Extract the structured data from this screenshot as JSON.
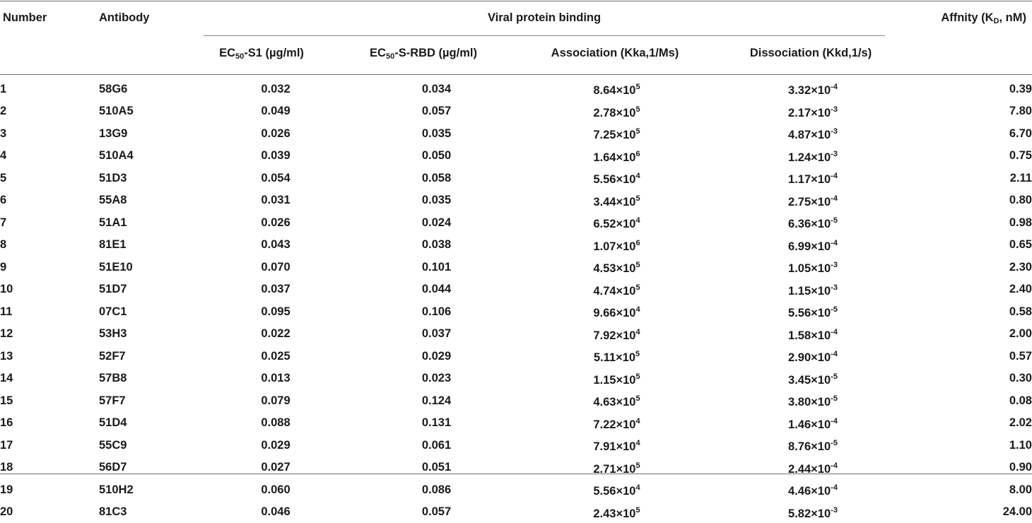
{
  "table": {
    "headers": {
      "number": "Number",
      "antibody": "Antibody",
      "group": "Viral protein binding",
      "affinity_prefix": "Affnity (K",
      "affinity_sub": "D",
      "affinity_suffix": ", nM)",
      "ec50_s1_prefix": "EC",
      "ec50_s1_sub": "50",
      "ec50_s1_suffix": "-S1 (µg/ml)",
      "ec50_rbd_prefix": "EC",
      "ec50_rbd_sub": "50",
      "ec50_rbd_suffix": "-S-RBD (µg/ml)",
      "association": "Association (Kka,1/Ms)",
      "dissociation": "Dissociation (Kkd,1/s)"
    },
    "rows": [
      {
        "number": "1",
        "antibody": "58G6",
        "ec50_s1": "0.032",
        "ec50_rbd": "0.034",
        "assoc_mant": "8.64×10",
        "assoc_exp": "5",
        "dissoc_mant": "3.32×10",
        "dissoc_exp": "-4",
        "kd": "0.39"
      },
      {
        "number": "2",
        "antibody": "510A5",
        "ec50_s1": "0.049",
        "ec50_rbd": "0.057",
        "assoc_mant": "2.78×10",
        "assoc_exp": "5",
        "dissoc_mant": "2.17×10",
        "dissoc_exp": "-3",
        "kd": "7.80"
      },
      {
        "number": "3",
        "antibody": "13G9",
        "ec50_s1": "0.026",
        "ec50_rbd": "0.035",
        "assoc_mant": "7.25×10",
        "assoc_exp": "5",
        "dissoc_mant": "4.87×10",
        "dissoc_exp": "-3",
        "kd": "6.70"
      },
      {
        "number": "4",
        "antibody": "510A4",
        "ec50_s1": "0.039",
        "ec50_rbd": "0.050",
        "assoc_mant": "1.64×10",
        "assoc_exp": "6",
        "dissoc_mant": "1.24×10",
        "dissoc_exp": "-3",
        "kd": "0.75"
      },
      {
        "number": "5",
        "antibody": "51D3",
        "ec50_s1": "0.054",
        "ec50_rbd": "0.058",
        "assoc_mant": "5.56×10",
        "assoc_exp": "4",
        "dissoc_mant": "1.17×10",
        "dissoc_exp": "-4",
        "kd": "2.11"
      },
      {
        "number": "6",
        "antibody": "55A8",
        "ec50_s1": "0.031",
        "ec50_rbd": "0.035",
        "assoc_mant": "3.44×10",
        "assoc_exp": "5",
        "dissoc_mant": "2.75×10",
        "dissoc_exp": "-4",
        "kd": "0.80"
      },
      {
        "number": "7",
        "antibody": "51A1",
        "ec50_s1": "0.026",
        "ec50_rbd": "0.024",
        "assoc_mant": "6.52×10",
        "assoc_exp": "4",
        "dissoc_mant": "6.36×10",
        "dissoc_exp": "-5",
        "kd": "0.98"
      },
      {
        "number": "8",
        "antibody": "81E1",
        "ec50_s1": "0.043",
        "ec50_rbd": "0.038",
        "assoc_mant": "1.07×10",
        "assoc_exp": "6",
        "dissoc_mant": "6.99×10",
        "dissoc_exp": "-4",
        "kd": "0.65"
      },
      {
        "number": "9",
        "antibody": "51E10",
        "ec50_s1": "0.070",
        "ec50_rbd": "0.101",
        "assoc_mant": "4.53×10",
        "assoc_exp": "5",
        "dissoc_mant": "1.05×10",
        "dissoc_exp": "-3",
        "kd": "2.30"
      },
      {
        "number": "10",
        "antibody": "51D7",
        "ec50_s1": "0.037",
        "ec50_rbd": "0.044",
        "assoc_mant": "4.74×10",
        "assoc_exp": "5",
        "dissoc_mant": "1.15×10",
        "dissoc_exp": "-3",
        "kd": "2.40"
      },
      {
        "number": "11",
        "antibody": "07C1",
        "ec50_s1": "0.095",
        "ec50_rbd": "0.106",
        "assoc_mant": "9.66×10",
        "assoc_exp": "4",
        "dissoc_mant": "5.56×10",
        "dissoc_exp": "-5",
        "kd": "0.58"
      },
      {
        "number": "12",
        "antibody": "53H3",
        "ec50_s1": "0.022",
        "ec50_rbd": "0.037",
        "assoc_mant": "7.92×10",
        "assoc_exp": "4",
        "dissoc_mant": "1.58×10",
        "dissoc_exp": "-4",
        "kd": "2.00"
      },
      {
        "number": "13",
        "antibody": "52F7",
        "ec50_s1": "0.025",
        "ec50_rbd": "0.029",
        "assoc_mant": "5.11×10",
        "assoc_exp": "5",
        "dissoc_mant": "2.90×10",
        "dissoc_exp": "-4",
        "kd": "0.57"
      },
      {
        "number": "14",
        "antibody": "57B8",
        "ec50_s1": "0.013",
        "ec50_rbd": "0.023",
        "assoc_mant": "1.15×10",
        "assoc_exp": "5",
        "dissoc_mant": "3.45×10",
        "dissoc_exp": "-5",
        "kd": "0.30"
      },
      {
        "number": "15",
        "antibody": "57F7",
        "ec50_s1": "0.079",
        "ec50_rbd": "0.124",
        "assoc_mant": "4.63×10",
        "assoc_exp": "5",
        "dissoc_mant": "3.80×10",
        "dissoc_exp": "-5",
        "kd": "0.08"
      },
      {
        "number": "16",
        "antibody": "51D4",
        "ec50_s1": "0.088",
        "ec50_rbd": "0.131",
        "assoc_mant": "7.22×10",
        "assoc_exp": "4",
        "dissoc_mant": "1.46×10",
        "dissoc_exp": "-4",
        "kd": "2.02"
      },
      {
        "number": "17",
        "antibody": "55C9",
        "ec50_s1": "0.029",
        "ec50_rbd": "0.061",
        "assoc_mant": "7.91×10",
        "assoc_exp": "4",
        "dissoc_mant": "8.76×10",
        "dissoc_exp": "-5",
        "kd": "1.10"
      },
      {
        "number": "18",
        "antibody": "56D7",
        "ec50_s1": "0.027",
        "ec50_rbd": "0.051",
        "assoc_mant": "2.71×10",
        "assoc_exp": "5",
        "dissoc_mant": "2.44×10",
        "dissoc_exp": "-4",
        "kd": "0.90"
      },
      {
        "number": "19",
        "antibody": "510H2",
        "ec50_s1": "0.060",
        "ec50_rbd": "0.086",
        "assoc_mant": "5.56×10",
        "assoc_exp": "4",
        "dissoc_mant": "4.46×10",
        "dissoc_exp": "-4",
        "kd": "8.00"
      },
      {
        "number": "20",
        "antibody": "81C3",
        "ec50_s1": "0.046",
        "ec50_rbd": "0.057",
        "assoc_mant": "2.43×10",
        "assoc_exp": "5",
        "dissoc_mant": "5.82×10",
        "dissoc_exp": "-3",
        "kd": "24.00"
      }
    ]
  }
}
